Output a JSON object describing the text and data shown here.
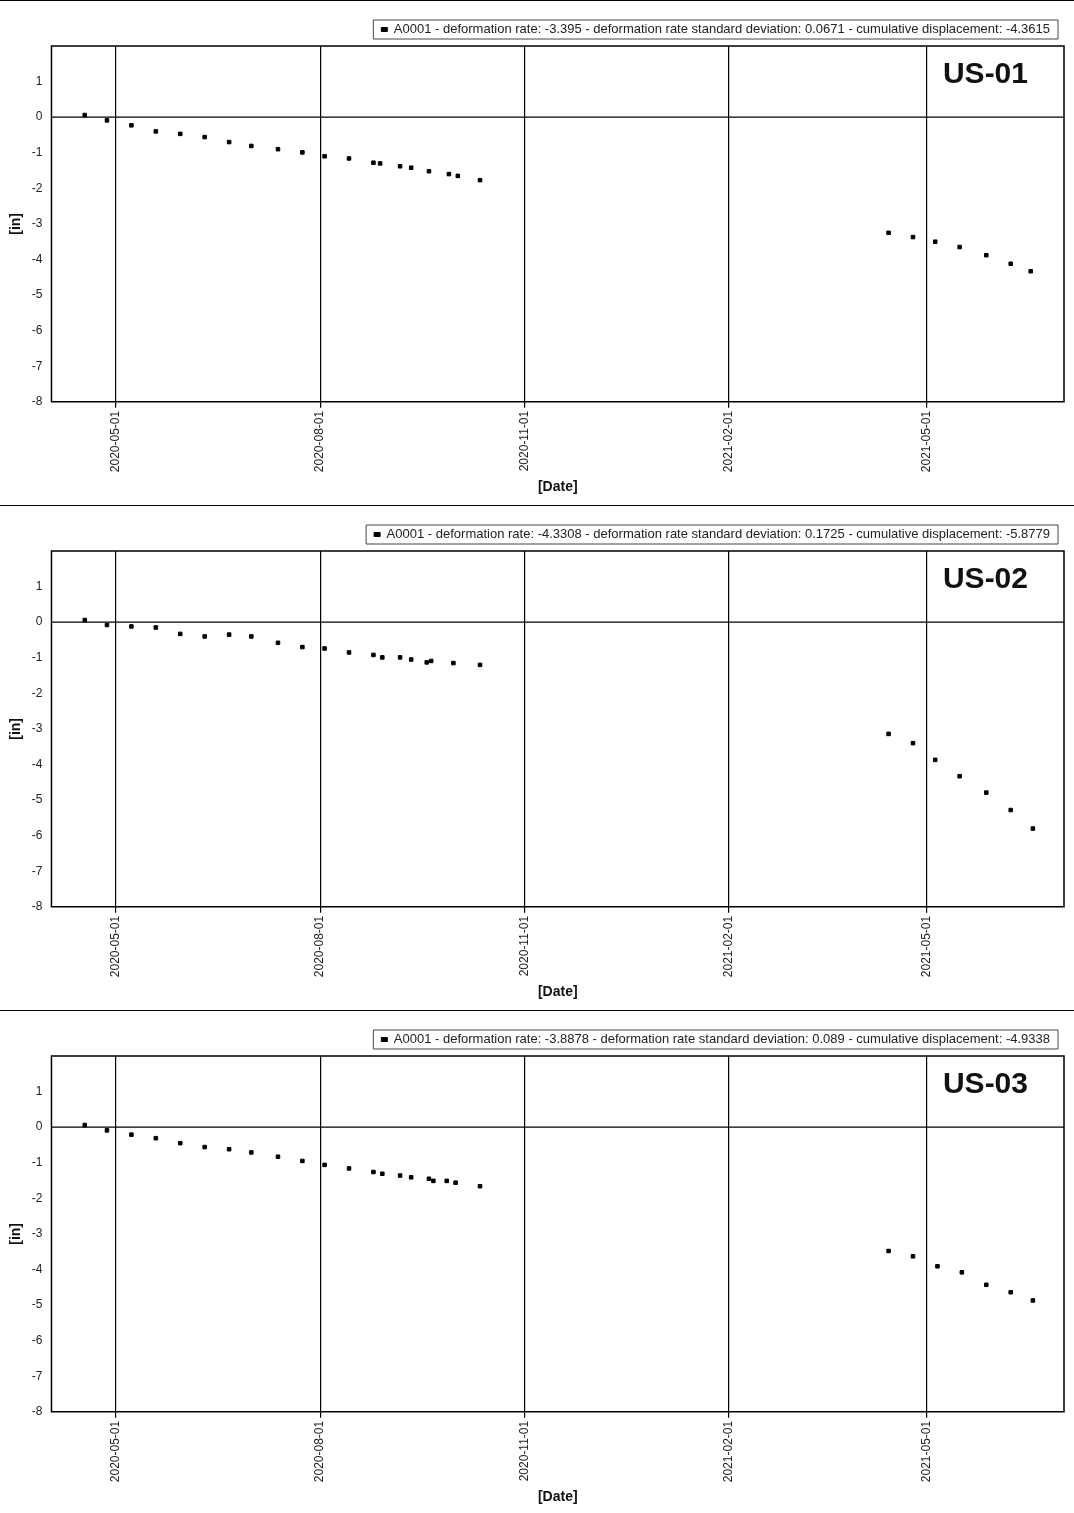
{
  "chart_data": [
    {
      "type": "scatter",
      "xlabel": "[Date]",
      "ylabel": "[in]",
      "annotations": [
        "US-01"
      ],
      "x": [
        "2020-04-17",
        "2020-04-27",
        "2020-05-08",
        "2020-05-19",
        "2020-05-30",
        "2020-06-10",
        "2020-06-21",
        "2020-07-01",
        "2020-07-13",
        "2020-07-24",
        "2020-08-03",
        "2020-08-14",
        "2020-08-25",
        "2020-08-28",
        "2020-09-06",
        "2020-09-11",
        "2020-09-19",
        "2020-09-28",
        "2020-10-02",
        "2020-10-12",
        "2021-04-14",
        "2021-04-25",
        "2021-05-05",
        "2021-05-16",
        "2021-05-28",
        "2021-06-08",
        "2021-06-17"
      ],
      "series": [
        {
          "name": "A0001 - deformation rate: -3.395 - deformation rate standard deviation: 0.0671 - cumulative displacement: -4.3615",
          "color": "#000000",
          "values": [
            0.06,
            -0.09,
            -0.23,
            -0.4,
            -0.47,
            -0.56,
            -0.7,
            -0.81,
            -0.9,
            -0.99,
            -1.1,
            -1.16,
            -1.28,
            -1.3,
            -1.38,
            -1.42,
            -1.52,
            -1.6,
            -1.65,
            -1.77,
            -3.25,
            -3.37,
            -3.5,
            -3.65,
            -3.88,
            -4.12,
            -4.33
          ]
        }
      ],
      "xlim": [
        "2020-04-02",
        "2021-07-02"
      ],
      "xticks": [
        "2020-05-01",
        "2020-08-01",
        "2020-11-01",
        "2021-02-01",
        "2021-05-01"
      ],
      "ylim": [
        -8,
        2
      ],
      "yticks": [
        -8,
        -7,
        -6,
        -5,
        -4,
        -3,
        -2,
        -1,
        0,
        1
      ],
      "grid": "x",
      "legend": "top",
      "marker": "square",
      "ref_lines": [
        {
          "axis": "y",
          "value": 0,
          "color": "#000000"
        }
      ]
    },
    {
      "type": "scatter",
      "xlabel": "[Date]",
      "ylabel": "[in]",
      "annotations": [
        "US-02"
      ],
      "x": [
        "2020-04-17",
        "2020-04-27",
        "2020-05-08",
        "2020-05-19",
        "2020-05-30",
        "2020-06-10",
        "2020-06-21",
        "2020-07-01",
        "2020-07-13",
        "2020-07-24",
        "2020-08-03",
        "2020-08-14",
        "2020-08-25",
        "2020-08-29",
        "2020-09-06",
        "2020-09-11",
        "2020-09-18",
        "2020-09-20",
        "2020-09-30",
        "2020-10-12",
        "2021-04-14",
        "2021-04-25",
        "2021-05-05",
        "2021-05-16",
        "2021-05-28",
        "2021-06-08",
        "2021-06-18"
      ],
      "series": [
        {
          "name": "A0001 - deformation rate: -4.3308 - deformation rate standard deviation: 0.1725 - cumulative displacement: -5.8779",
          "color": "#000000",
          "values": [
            0.06,
            -0.08,
            -0.12,
            -0.15,
            -0.33,
            -0.4,
            -0.35,
            -0.4,
            -0.58,
            -0.7,
            -0.74,
            -0.85,
            -0.92,
            -0.99,
            -0.99,
            -1.05,
            -1.13,
            -1.09,
            -1.15,
            -1.2,
            -3.14,
            -3.4,
            -3.87,
            -4.33,
            -4.79,
            -5.28,
            -5.8
          ]
        }
      ],
      "xlim": [
        "2020-04-02",
        "2021-07-02"
      ],
      "xticks": [
        "2020-05-01",
        "2020-08-01",
        "2020-11-01",
        "2021-02-01",
        "2021-05-01"
      ],
      "ylim": [
        -8,
        2
      ],
      "yticks": [
        -8,
        -7,
        -6,
        -5,
        -4,
        -3,
        -2,
        -1,
        0,
        1
      ],
      "grid": "x",
      "legend": "top",
      "marker": "square",
      "ref_lines": [
        {
          "axis": "y",
          "value": 0,
          "color": "#000000"
        }
      ]
    },
    {
      "type": "scatter",
      "xlabel": "[Date]",
      "ylabel": "[in]",
      "annotations": [
        "US-03"
      ],
      "x": [
        "2020-04-17",
        "2020-04-27",
        "2020-05-08",
        "2020-05-19",
        "2020-05-30",
        "2020-06-10",
        "2020-06-21",
        "2020-07-01",
        "2020-07-13",
        "2020-07-24",
        "2020-08-03",
        "2020-08-14",
        "2020-08-25",
        "2020-08-29",
        "2020-09-06",
        "2020-09-11",
        "2020-09-19",
        "2020-09-21",
        "2020-09-27",
        "2020-10-01",
        "2020-10-12",
        "2021-04-14",
        "2021-04-25",
        "2021-05-06",
        "2021-05-17",
        "2021-05-28",
        "2021-06-08",
        "2021-06-18"
      ],
      "series": [
        {
          "name": "A0001 - deformation rate: -3.8878 - deformation rate standard deviation: 0.089 - cumulative displacement: -4.9338",
          "color": "#000000",
          "values": [
            0.06,
            -0.09,
            -0.21,
            -0.31,
            -0.45,
            -0.56,
            -0.62,
            -0.71,
            -0.83,
            -0.95,
            -1.06,
            -1.16,
            -1.26,
            -1.31,
            -1.36,
            -1.41,
            -1.45,
            -1.51,
            -1.51,
            -1.56,
            -1.66,
            -3.48,
            -3.63,
            -3.91,
            -4.08,
            -4.43,
            -4.64,
            -4.87
          ]
        }
      ],
      "xlim": [
        "2020-04-02",
        "2021-07-02"
      ],
      "xticks": [
        "2020-05-01",
        "2020-08-01",
        "2020-11-01",
        "2021-02-01",
        "2021-05-01"
      ],
      "ylim": [
        -8,
        2
      ],
      "yticks": [
        -8,
        -7,
        -6,
        -5,
        -4,
        -3,
        -2,
        -1,
        0,
        1
      ],
      "grid": "x",
      "legend": "top",
      "marker": "square",
      "ref_lines": [
        {
          "axis": "y",
          "value": 0,
          "color": "#000000"
        }
      ]
    }
  ]
}
